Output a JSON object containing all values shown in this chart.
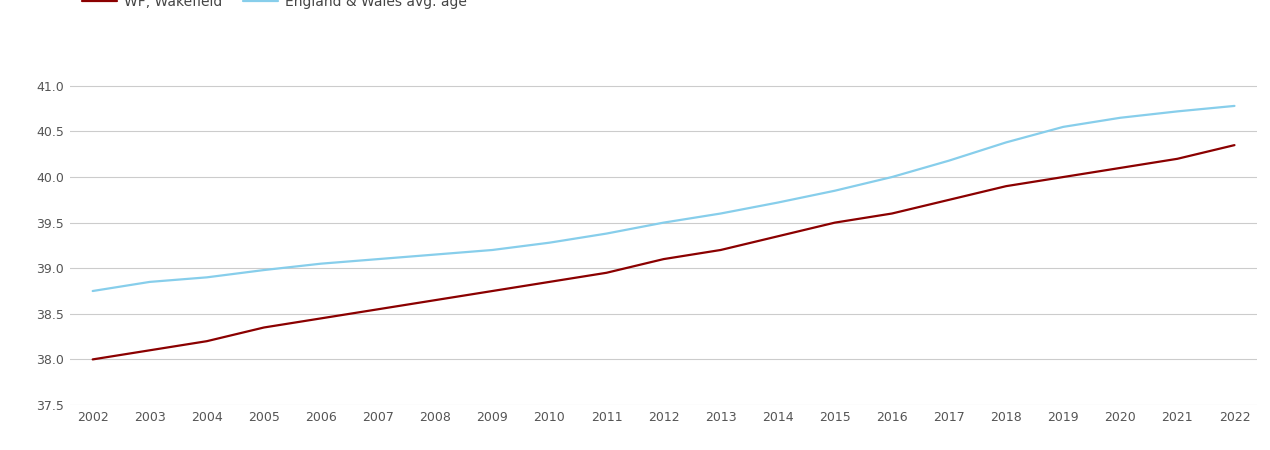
{
  "years": [
    2002,
    2003,
    2004,
    2005,
    2006,
    2007,
    2008,
    2009,
    2010,
    2011,
    2012,
    2013,
    2014,
    2015,
    2016,
    2017,
    2018,
    2019,
    2020,
    2021,
    2022
  ],
  "wakefield": [
    38.0,
    38.1,
    38.2,
    38.35,
    38.45,
    38.55,
    38.65,
    38.75,
    38.85,
    38.95,
    39.1,
    39.2,
    39.35,
    39.5,
    39.6,
    39.75,
    39.9,
    40.0,
    40.1,
    40.2,
    40.35
  ],
  "england_wales": [
    38.75,
    38.85,
    38.9,
    38.98,
    39.05,
    39.1,
    39.15,
    39.2,
    39.28,
    39.38,
    39.5,
    39.6,
    39.72,
    39.85,
    40.0,
    40.18,
    40.38,
    40.55,
    40.65,
    40.72,
    40.78
  ],
  "wakefield_label": "WF, Wakefield",
  "england_wales_label": "England & Wales avg. age",
  "wakefield_color": "#8B0000",
  "england_wales_color": "#87CEEB",
  "ylim": [
    37.5,
    41.3
  ],
  "yticks": [
    37.5,
    38.0,
    38.5,
    39.0,
    39.5,
    40.0,
    40.5,
    41.0
  ],
  "background_color": "#ffffff",
  "grid_color": "#cccccc",
  "line_width": 1.6
}
